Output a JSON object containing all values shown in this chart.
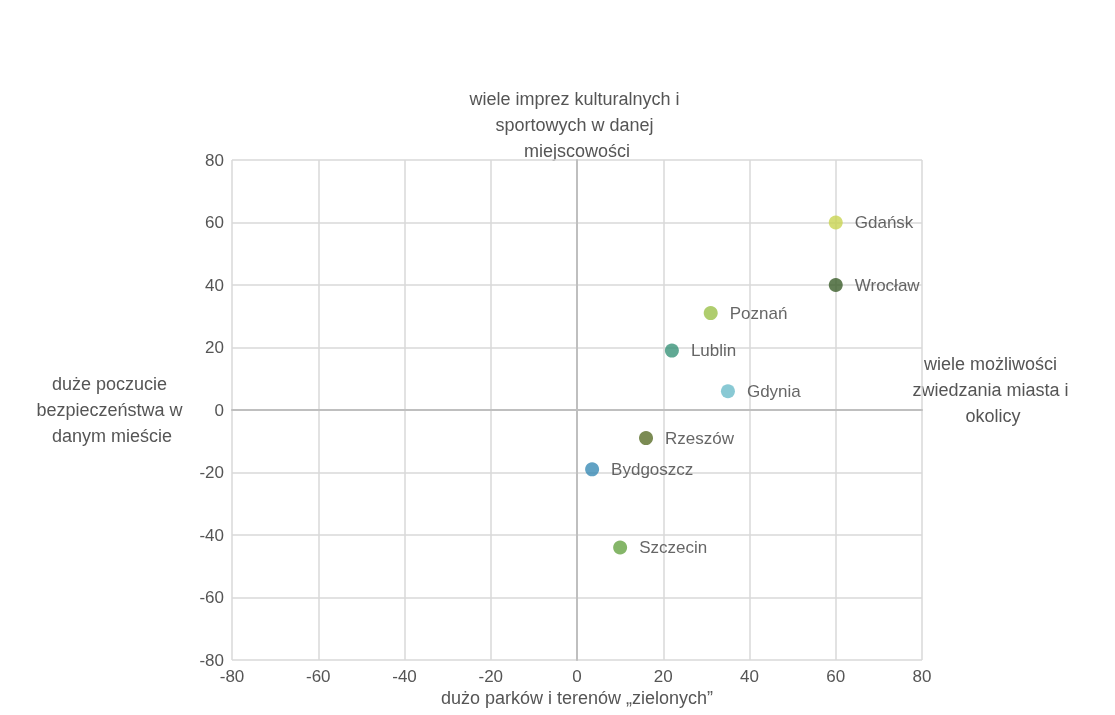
{
  "chart_data": {
    "type": "scatter",
    "xlabel": "dużo parków i terenów „zielonych”",
    "ylabel": "wiele imprez kulturalnych i sportowych w danej miejscowości",
    "annotations": [
      "duże poczucie bezpieczeństwa w danym mieście",
      "wiele możliwości zwiedzania miasta i okolicy"
    ],
    "xlim": [
      -80,
      80
    ],
    "xticks": [
      -80,
      -60,
      -40,
      -20,
      0,
      20,
      40,
      60,
      80
    ],
    "ylim": [
      -80,
      80
    ],
    "yticks": [
      -80,
      -60,
      -40,
      -20,
      0,
      20,
      40,
      60,
      80
    ],
    "grid": true,
    "marker": "circle",
    "series": [
      {
        "name": "Gdańsk",
        "color": "#c9d452",
        "x": [
          60
        ],
        "values": [
          60
        ]
      },
      {
        "name": "Wrocław",
        "color": "#3b5e2b",
        "x": [
          60
        ],
        "values": [
          40
        ]
      },
      {
        "name": "Poznań",
        "color": "#9bc14a",
        "x": [
          31
        ],
        "values": [
          31
        ]
      },
      {
        "name": "Lublin",
        "color": "#3a9479",
        "x": [
          22
        ],
        "values": [
          19
        ]
      },
      {
        "name": "Gdynia",
        "color": "#6bbcc9",
        "x": [
          35
        ],
        "values": [
          6
        ]
      },
      {
        "name": "Rzeszów",
        "color": "#5a6e28",
        "x": [
          16
        ],
        "values": [
          -9
        ]
      },
      {
        "name": "Bydgoszcz",
        "color": "#3a8bb5",
        "x": [
          3.5
        ],
        "values": [
          -19
        ]
      },
      {
        "name": "Szczecin",
        "color": "#66a444",
        "x": [
          10
        ],
        "values": [
          -44
        ]
      }
    ]
  }
}
